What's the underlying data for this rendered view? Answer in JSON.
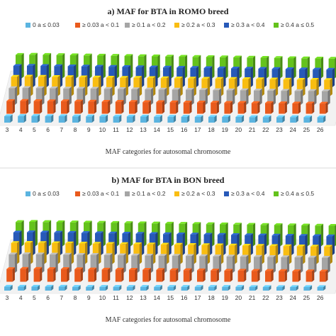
{
  "figure": {
    "colors": [
      "#5bb4e0",
      "#e95a1c",
      "#a5a5a5",
      "#f9bd11",
      "#2759b8",
      "#64c21c"
    ]
  },
  "chart_data": [
    {
      "type": "bar",
      "title": "a) MAF for BTA in ROMO breed",
      "xlabel": "MAF categories for autosomal chromosome",
      "ylabel": "",
      "grid": false,
      "legend_position": "top",
      "categories": [
        "3",
        "4",
        "5",
        "6",
        "7",
        "8",
        "9",
        "10",
        "11",
        "12",
        "13",
        "14",
        "15",
        "16",
        "17",
        "18",
        "19",
        "20",
        "21",
        "22",
        "23",
        "24",
        "25",
        "26"
      ],
      "series": [
        {
          "name": "0 a ≤ 0.03",
          "values": [
            20,
            21,
            21,
            20,
            20,
            19,
            19,
            19,
            18,
            18,
            18,
            17,
            17,
            17,
            16,
            16,
            16,
            16,
            15,
            15,
            15,
            15,
            14,
            14
          ]
        },
        {
          "name": "≥ 0.03 a < 0.1",
          "values": [
            55,
            56,
            55,
            54,
            54,
            53,
            52,
            51,
            51,
            50,
            49,
            49,
            48,
            47,
            47,
            46,
            45,
            45,
            44,
            44,
            43,
            42,
            42,
            41
          ]
        },
        {
          "name": "≥ 0.1 a < 0.2",
          "values": [
            78,
            79,
            78,
            77,
            76,
            75,
            75,
            74,
            73,
            72,
            71,
            70,
            70,
            69,
            68,
            67,
            66,
            66,
            65,
            64,
            63,
            62,
            62,
            61
          ]
        },
        {
          "name": "≥ 0.2 a < 0.3",
          "values": [
            92,
            93,
            92,
            91,
            90,
            89,
            88,
            87,
            86,
            86,
            85,
            84,
            83,
            82,
            81,
            80,
            80,
            79,
            78,
            77,
            76,
            75,
            75,
            74
          ]
        },
        {
          "name": "≥ 0.3 a < 0.4",
          "values": [
            103,
            104,
            103,
            102,
            101,
            100,
            99,
            98,
            97,
            96,
            95,
            94,
            93,
            92,
            91,
            90,
            89,
            88,
            87,
            86,
            85,
            84,
            83,
            82
          ]
        },
        {
          "name": "≥ 0.4 a ≤ 0.5",
          "values": [
            115,
            116,
            115,
            114,
            113,
            112,
            111,
            110,
            109,
            108,
            107,
            106,
            105,
            104,
            103,
            102,
            101,
            100,
            99,
            98,
            97,
            96,
            95,
            94
          ]
        }
      ]
    },
    {
      "type": "bar",
      "title": "b) MAF for BTA in BON breed",
      "xlabel": "MAF categories for autosomal chromosome",
      "ylabel": "",
      "grid": false,
      "legend_position": "top",
      "categories": [
        "3",
        "4",
        "5",
        "6",
        "7",
        "8",
        "9",
        "10",
        "11",
        "12",
        "13",
        "14",
        "15",
        "16",
        "17",
        "18",
        "19",
        "20",
        "21",
        "22",
        "23",
        "24",
        "25",
        "26"
      ],
      "series": [
        {
          "name": "0 a ≤ 0.03",
          "values": [
            6,
            6,
            6,
            6,
            6,
            5,
            5,
            5,
            5,
            5,
            5,
            5,
            5,
            5,
            5,
            5,
            5,
            5,
            4,
            4,
            4,
            4,
            4,
            4
          ]
        },
        {
          "name": "≥ 0.03 a < 0.1",
          "values": [
            55,
            56,
            56,
            55,
            55,
            54,
            53,
            52,
            52,
            51,
            51,
            50,
            49,
            49,
            48,
            47,
            46,
            46,
            45,
            45,
            44,
            43,
            43,
            42
          ]
        },
        {
          "name": "≥ 0.1 a < 0.2",
          "values": [
            88,
            89,
            88,
            87,
            86,
            85,
            85,
            84,
            83,
            82,
            81,
            80,
            80,
            79,
            78,
            77,
            76,
            75,
            74,
            73,
            72,
            71,
            70,
            69
          ]
        },
        {
          "name": "≥ 0.2 a < 0.3",
          "values": [
            102,
            103,
            102,
            101,
            100,
            99,
            98,
            97,
            96,
            95,
            94,
            93,
            92,
            91,
            90,
            89,
            88,
            87,
            86,
            85,
            84,
            83,
            82,
            81
          ]
        },
        {
          "name": "≥ 0.3 a < 0.4",
          "values": [
            111,
            112,
            111,
            110,
            109,
            108,
            107,
            106,
            105,
            104,
            103,
            102,
            101,
            100,
            99,
            98,
            97,
            96,
            95,
            94,
            93,
            92,
            91,
            90
          ]
        },
        {
          "name": "≥ 0.4 a ≤ 0.5",
          "values": [
            120,
            121,
            120,
            119,
            118,
            117,
            116,
            115,
            114,
            113,
            112,
            111,
            110,
            109,
            108,
            107,
            106,
            105,
            104,
            103,
            102,
            101,
            100,
            99
          ]
        }
      ]
    }
  ]
}
